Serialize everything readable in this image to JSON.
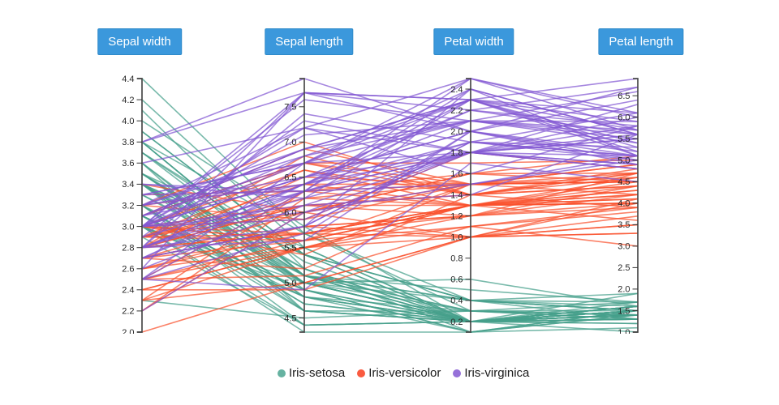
{
  "header": {
    "axes": [
      "Sepal width",
      "Sepal length",
      "Petal width",
      "Petal length"
    ]
  },
  "legend": {
    "position": "bottom-center",
    "items": [
      {
        "label": "Iris-setosa",
        "color": "#66b2a1"
      },
      {
        "label": "Iris-versicolor",
        "color": "#fa5b40"
      },
      {
        "label": "Iris-virginica",
        "color": "#9671d9"
      }
    ]
  },
  "colors": {
    "axis_button_bg": "#3b98dc",
    "axis_button_border": "#2e8ac9",
    "axis_button_text": "#ffffff",
    "axis_line": "#4a4a4a",
    "tick_text": "#262626",
    "background": "#ffffff"
  },
  "chart_data": {
    "type": "parallel-coordinates",
    "dataset": "Iris",
    "grid": false,
    "axes": [
      {
        "label": "Sepal width",
        "min": 2.0,
        "max": 4.4,
        "ticks": [
          "2.0",
          "2.2",
          "2.4",
          "2.6",
          "2.8",
          "3.0",
          "3.2",
          "3.4",
          "3.6",
          "3.8",
          "4.0",
          "4.2",
          "4.4"
        ]
      },
      {
        "label": "Sepal length",
        "min": 4.3,
        "max": 7.9,
        "ticks": [
          "4.5",
          "5.0",
          "5.5",
          "6.0",
          "6.5",
          "7.0",
          "7.5"
        ]
      },
      {
        "label": "Petal width",
        "min": 0.1,
        "max": 2.5,
        "ticks": [
          "0.2",
          "0.4",
          "0.6",
          "0.8",
          "1.0",
          "1.2",
          "1.4",
          "1.6",
          "1.8",
          "2.0",
          "2.2",
          "2.4"
        ]
      },
      {
        "label": "Petal length",
        "min": 1.0,
        "max": 6.9,
        "ticks": [
          "1.0",
          "1.5",
          "2.0",
          "2.5",
          "3.0",
          "3.5",
          "4.0",
          "4.5",
          "5.0",
          "5.5",
          "6.0",
          "6.5"
        ]
      }
    ],
    "value_order_per_row": [
      "Sepal width",
      "Sepal length",
      "Petal width",
      "Petal length"
    ],
    "line_opacity": 0.72,
    "line_width": 1.6,
    "series": [
      {
        "name": "Iris-setosa",
        "line_color": "#45a08b",
        "rows": [
          [
            3.5,
            5.1,
            0.2,
            1.4
          ],
          [
            3.0,
            4.9,
            0.2,
            1.4
          ],
          [
            3.2,
            4.7,
            0.2,
            1.3
          ],
          [
            3.1,
            4.6,
            0.2,
            1.5
          ],
          [
            3.6,
            5.0,
            0.2,
            1.4
          ],
          [
            3.9,
            5.4,
            0.4,
            1.7
          ],
          [
            3.4,
            4.6,
            0.3,
            1.4
          ],
          [
            3.4,
            5.0,
            0.2,
            1.5
          ],
          [
            2.9,
            4.4,
            0.2,
            1.4
          ],
          [
            3.1,
            4.9,
            0.1,
            1.5
          ],
          [
            3.7,
            5.4,
            0.2,
            1.5
          ],
          [
            3.4,
            4.8,
            0.2,
            1.6
          ],
          [
            3.0,
            4.8,
            0.1,
            1.4
          ],
          [
            3.0,
            4.3,
            0.1,
            1.1
          ],
          [
            4.0,
            5.8,
            0.2,
            1.2
          ],
          [
            4.4,
            5.7,
            0.4,
            1.5
          ],
          [
            3.9,
            5.4,
            0.4,
            1.3
          ],
          [
            3.5,
            5.1,
            0.3,
            1.4
          ],
          [
            3.8,
            5.7,
            0.3,
            1.7
          ],
          [
            3.8,
            5.1,
            0.3,
            1.5
          ],
          [
            3.4,
            5.4,
            0.2,
            1.7
          ],
          [
            3.7,
            5.1,
            0.4,
            1.5
          ],
          [
            3.6,
            4.6,
            0.2,
            1.0
          ],
          [
            3.3,
            5.1,
            0.5,
            1.7
          ],
          [
            3.4,
            4.8,
            0.2,
            1.9
          ],
          [
            3.0,
            5.0,
            0.2,
            1.6
          ],
          [
            3.4,
            5.0,
            0.4,
            1.6
          ],
          [
            3.5,
            5.2,
            0.2,
            1.5
          ],
          [
            3.4,
            5.2,
            0.2,
            1.4
          ],
          [
            3.2,
            4.7,
            0.2,
            1.6
          ],
          [
            3.1,
            4.8,
            0.2,
            1.6
          ],
          [
            3.4,
            5.4,
            0.4,
            1.5
          ],
          [
            4.1,
            5.2,
            0.1,
            1.5
          ],
          [
            4.2,
            5.5,
            0.2,
            1.4
          ],
          [
            3.1,
            4.9,
            0.2,
            1.5
          ],
          [
            3.2,
            5.0,
            0.2,
            1.2
          ],
          [
            3.5,
            5.5,
            0.2,
            1.3
          ],
          [
            3.6,
            4.9,
            0.1,
            1.4
          ],
          [
            3.0,
            4.4,
            0.2,
            1.3
          ],
          [
            3.4,
            5.1,
            0.2,
            1.5
          ],
          [
            3.5,
            5.0,
            0.3,
            1.3
          ],
          [
            2.3,
            4.5,
            0.3,
            1.3
          ],
          [
            3.2,
            4.4,
            0.2,
            1.3
          ],
          [
            3.5,
            5.0,
            0.6,
            1.6
          ],
          [
            3.8,
            5.1,
            0.4,
            1.9
          ],
          [
            3.0,
            4.8,
            0.3,
            1.4
          ],
          [
            3.8,
            5.1,
            0.2,
            1.6
          ],
          [
            3.2,
            4.6,
            0.2,
            1.4
          ],
          [
            3.7,
            5.3,
            0.2,
            1.5
          ],
          [
            3.3,
            5.0,
            0.2,
            1.4
          ]
        ]
      },
      {
        "name": "Iris-versicolor",
        "line_color": "#f9512c",
        "rows": [
          [
            3.2,
            7.0,
            1.4,
            4.7
          ],
          [
            3.2,
            6.4,
            1.5,
            4.5
          ],
          [
            3.1,
            6.9,
            1.5,
            4.9
          ],
          [
            2.3,
            5.5,
            1.3,
            4.0
          ],
          [
            2.8,
            6.5,
            1.5,
            4.6
          ],
          [
            2.8,
            5.7,
            1.3,
            4.5
          ],
          [
            3.3,
            6.3,
            1.6,
            4.7
          ],
          [
            2.4,
            4.9,
            1.0,
            3.3
          ],
          [
            2.9,
            6.6,
            1.3,
            4.6
          ],
          [
            2.7,
            5.2,
            1.4,
            3.9
          ],
          [
            2.0,
            5.0,
            1.0,
            3.5
          ],
          [
            3.0,
            5.9,
            1.5,
            4.2
          ],
          [
            2.2,
            6.0,
            1.0,
            4.0
          ],
          [
            2.9,
            6.1,
            1.4,
            4.7
          ],
          [
            2.9,
            5.6,
            1.3,
            3.6
          ],
          [
            3.1,
            6.7,
            1.4,
            4.4
          ],
          [
            3.0,
            5.6,
            1.5,
            4.5
          ],
          [
            2.7,
            5.8,
            1.0,
            4.1
          ],
          [
            2.2,
            6.2,
            1.5,
            4.5
          ],
          [
            2.5,
            5.6,
            1.1,
            3.9
          ],
          [
            3.2,
            5.9,
            1.8,
            4.8
          ],
          [
            2.8,
            6.1,
            1.3,
            4.0
          ],
          [
            2.5,
            6.3,
            1.5,
            4.9
          ],
          [
            2.8,
            6.1,
            1.2,
            4.7
          ],
          [
            2.9,
            6.4,
            1.3,
            4.3
          ],
          [
            3.0,
            6.6,
            1.4,
            4.4
          ],
          [
            2.8,
            6.8,
            1.4,
            4.8
          ],
          [
            3.0,
            6.7,
            1.7,
            5.0
          ],
          [
            2.9,
            6.0,
            1.5,
            4.5
          ],
          [
            2.6,
            5.7,
            1.0,
            3.5
          ],
          [
            2.4,
            5.5,
            1.1,
            3.8
          ],
          [
            2.4,
            5.5,
            1.0,
            3.7
          ],
          [
            2.7,
            5.8,
            1.2,
            3.9
          ],
          [
            2.7,
            6.0,
            1.6,
            5.1
          ],
          [
            3.0,
            5.4,
            1.5,
            4.5
          ],
          [
            3.4,
            6.0,
            1.6,
            4.5
          ],
          [
            3.1,
            6.7,
            1.5,
            4.7
          ],
          [
            2.3,
            6.3,
            1.3,
            4.4
          ],
          [
            3.0,
            5.6,
            1.3,
            4.1
          ],
          [
            2.5,
            5.5,
            1.3,
            4.0
          ],
          [
            2.6,
            5.5,
            1.2,
            4.4
          ],
          [
            3.0,
            6.1,
            1.4,
            4.6
          ],
          [
            2.6,
            5.8,
            1.2,
            4.0
          ],
          [
            2.3,
            5.0,
            1.0,
            3.3
          ],
          [
            2.7,
            5.6,
            1.3,
            4.2
          ],
          [
            3.0,
            5.7,
            1.2,
            4.2
          ],
          [
            2.9,
            5.7,
            1.3,
            4.2
          ],
          [
            2.9,
            6.2,
            1.3,
            4.3
          ],
          [
            2.5,
            5.1,
            1.1,
            3.0
          ],
          [
            2.8,
            5.7,
            1.3,
            4.1
          ]
        ]
      },
      {
        "name": "Iris-virginica",
        "line_color": "#8257d3",
        "rows": [
          [
            3.3,
            6.3,
            2.5,
            6.0
          ],
          [
            2.7,
            5.8,
            1.9,
            5.1
          ],
          [
            3.0,
            7.1,
            2.1,
            5.9
          ],
          [
            2.9,
            6.3,
            1.8,
            5.6
          ],
          [
            3.0,
            6.5,
            2.2,
            5.8
          ],
          [
            3.0,
            7.6,
            2.1,
            6.6
          ],
          [
            2.5,
            4.9,
            1.7,
            4.5
          ],
          [
            2.9,
            7.3,
            1.8,
            6.3
          ],
          [
            2.5,
            6.7,
            1.8,
            5.8
          ],
          [
            3.6,
            7.2,
            2.5,
            6.1
          ],
          [
            3.2,
            6.5,
            2.0,
            5.1
          ],
          [
            2.7,
            6.4,
            1.9,
            5.3
          ],
          [
            3.0,
            6.8,
            2.1,
            5.5
          ],
          [
            2.5,
            5.7,
            2.0,
            5.0
          ],
          [
            2.8,
            5.8,
            2.4,
            5.1
          ],
          [
            3.2,
            6.4,
            2.3,
            5.3
          ],
          [
            3.0,
            6.5,
            1.8,
            5.5
          ],
          [
            3.8,
            7.7,
            2.2,
            6.7
          ],
          [
            2.6,
            7.7,
            2.3,
            6.9
          ],
          [
            2.2,
            6.0,
            1.5,
            5.0
          ],
          [
            3.2,
            6.9,
            2.3,
            5.7
          ],
          [
            2.8,
            5.6,
            2.0,
            4.9
          ],
          [
            2.8,
            7.7,
            2.0,
            6.7
          ],
          [
            2.7,
            6.3,
            1.8,
            4.9
          ],
          [
            3.3,
            6.7,
            2.1,
            5.7
          ],
          [
            3.2,
            7.2,
            1.8,
            6.0
          ],
          [
            2.8,
            6.2,
            1.8,
            4.8
          ],
          [
            3.0,
            6.1,
            1.8,
            4.9
          ],
          [
            2.8,
            6.4,
            2.1,
            5.6
          ],
          [
            3.0,
            7.2,
            1.6,
            5.8
          ],
          [
            2.8,
            7.4,
            1.9,
            6.1
          ],
          [
            3.8,
            7.9,
            2.0,
            6.4
          ],
          [
            2.8,
            6.4,
            2.2,
            5.6
          ],
          [
            2.8,
            6.3,
            1.5,
            5.1
          ],
          [
            2.6,
            6.1,
            1.4,
            5.6
          ],
          [
            3.0,
            7.7,
            2.3,
            6.1
          ],
          [
            3.4,
            6.3,
            2.4,
            5.6
          ],
          [
            3.1,
            6.4,
            1.8,
            5.5
          ],
          [
            3.0,
            6.0,
            1.8,
            4.8
          ],
          [
            3.1,
            6.9,
            2.1,
            5.4
          ],
          [
            3.1,
            6.7,
            2.4,
            5.6
          ],
          [
            3.1,
            6.9,
            2.3,
            5.1
          ],
          [
            2.7,
            5.8,
            1.9,
            5.1
          ],
          [
            3.2,
            6.8,
            2.3,
            5.9
          ],
          [
            3.3,
            6.7,
            2.5,
            5.7
          ],
          [
            3.0,
            6.7,
            2.3,
            5.2
          ],
          [
            2.5,
            6.3,
            1.9,
            5.0
          ],
          [
            3.0,
            6.5,
            2.0,
            5.2
          ],
          [
            3.4,
            6.2,
            2.3,
            5.4
          ],
          [
            3.0,
            5.9,
            1.8,
            5.1
          ]
        ]
      }
    ]
  }
}
